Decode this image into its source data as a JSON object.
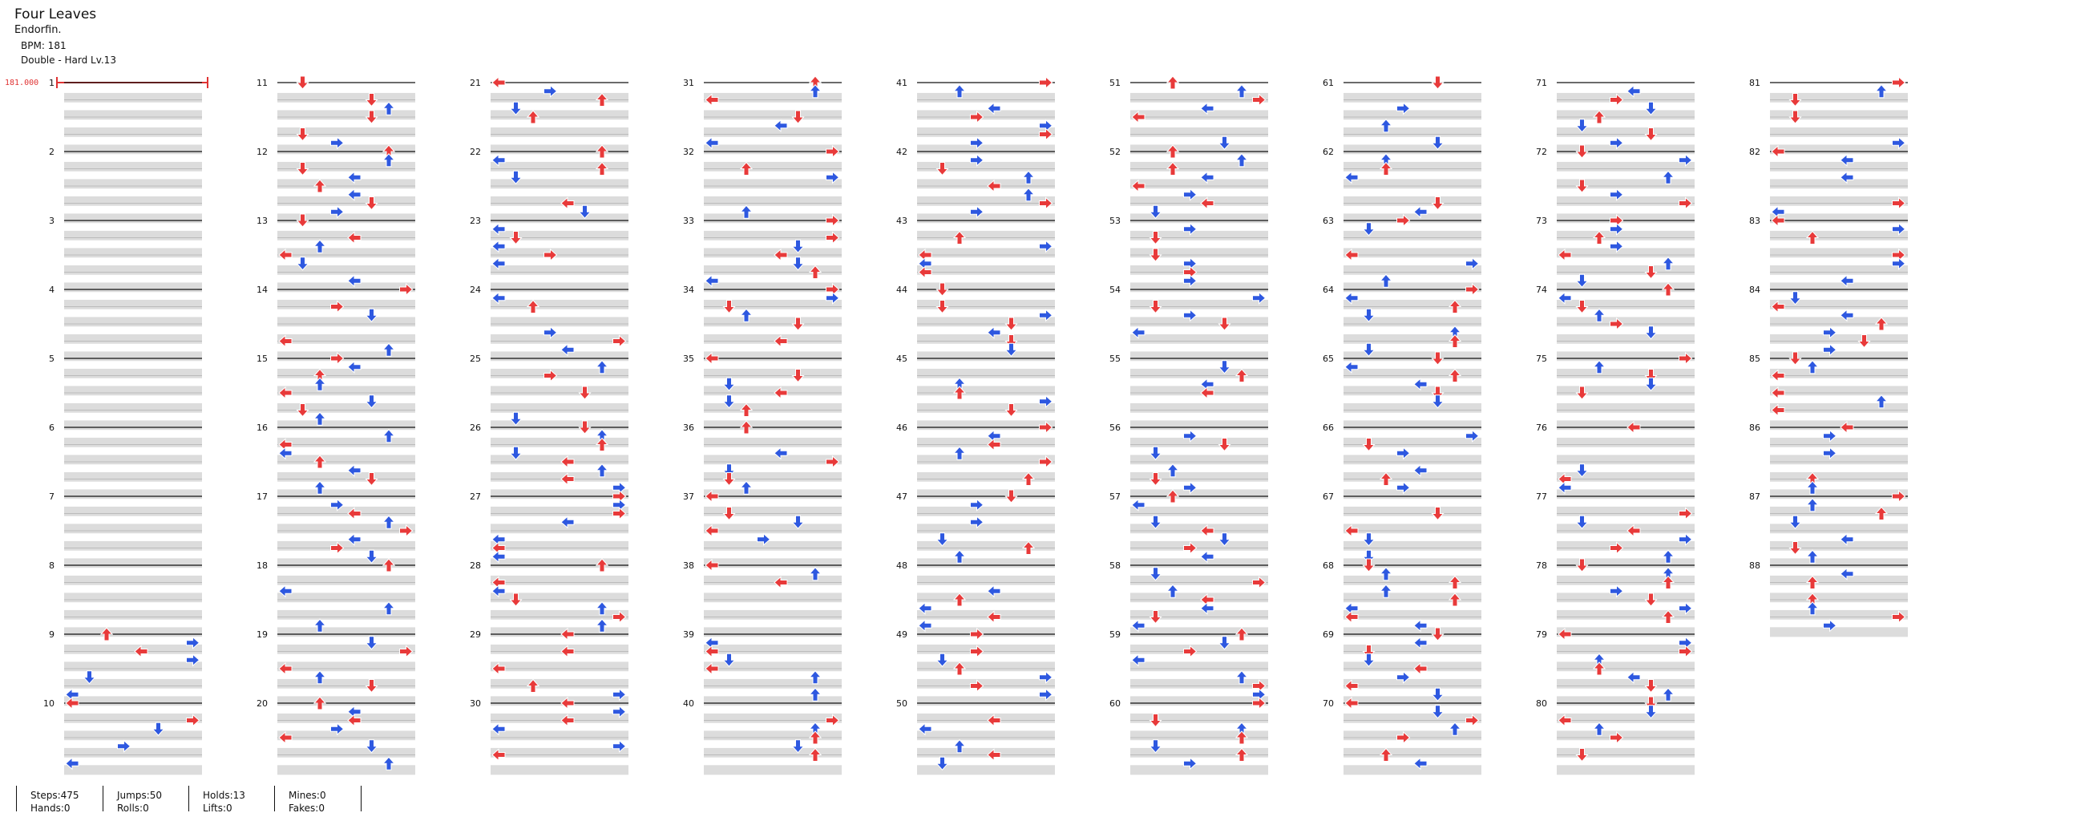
{
  "song": {
    "title": "Four Leaves",
    "artist": "Endorfin.",
    "bpm_label": "BPM: 181",
    "difficulty_label": "Double - Hard Lv.13"
  },
  "bpm_marker": "181.000",
  "measure_count": 88,
  "colors": {
    "quarter": "#e83a3a",
    "eighth": "#2e58e0",
    "hold": "#8fe08f",
    "stripe": "#dcdcdc",
    "beatline": "#111111"
  },
  "stats": {
    "steps": "Steps:475",
    "hands": "Hands:0",
    "jumps": "Jumps:50",
    "rolls": "Rolls:0",
    "holds": "Holds:13",
    "lifts": "Lifts:0",
    "mines": "Mines:0",
    "fakes": "Fakes:0"
  }
}
